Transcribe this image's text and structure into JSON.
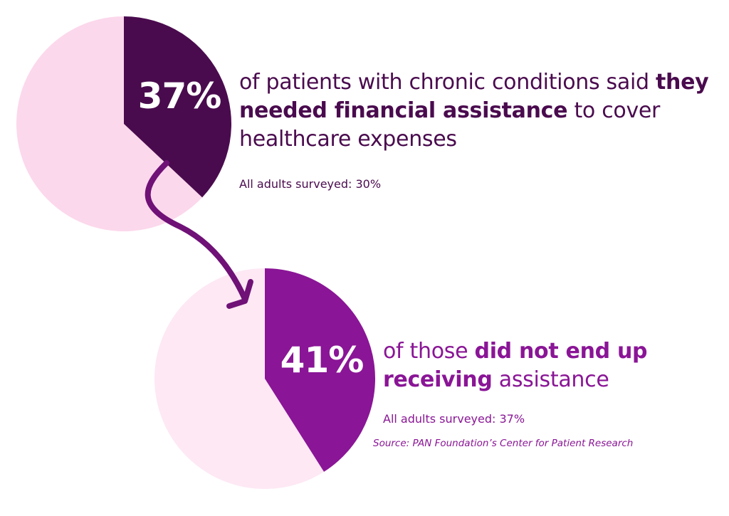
{
  "colors": {
    "bg": "#ffffff",
    "pie1_fill": "#4a0b4e",
    "pie1_rest": "#fcd8ec",
    "pie2_fill": "#8a1596",
    "pie2_rest": "#fde8f4",
    "arrow": "#6f1176",
    "text1": "#4a0b4e",
    "text2": "#8a1596"
  },
  "chart_data": [
    {
      "type": "pie",
      "value": 37,
      "label": "37%",
      "statement": {
        "pre": "of patients with chronic conditions said ",
        "bold": "they needed financial assistance",
        "post": " to cover healthcare expenses"
      },
      "comparison": "All adults surveyed: 30%"
    },
    {
      "type": "pie",
      "value": 41,
      "label": "41%",
      "statement": {
        "pre": "of those ",
        "bold": "did not end up receiving",
        "post": " assistance"
      },
      "comparison": "All adults surveyed: 37%"
    }
  ],
  "source": "Source: PAN Foundation’s Center for Patient Research"
}
